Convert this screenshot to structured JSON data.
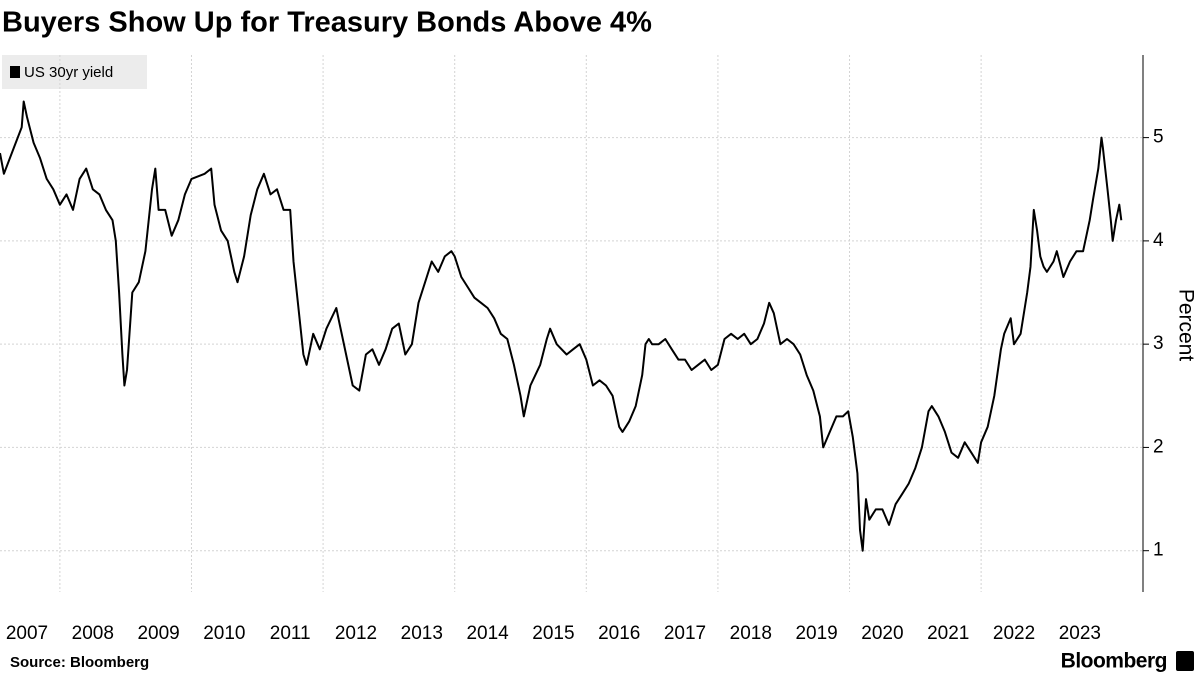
{
  "chart_data": {
    "type": "line",
    "title": "Buyers Show Up for Treasury Bonds Above 4%",
    "source": "Source: Bloomberg",
    "brand": "Bloomberg",
    "ylabel": "Percent",
    "xlim": [
      2007.09,
      2024.46
    ],
    "xticks": [
      2007,
      2008,
      2009,
      2010,
      2011,
      2012,
      2013,
      2014,
      2015,
      2016,
      2017,
      2018,
      2019,
      2020,
      2021,
      2022,
      2023
    ],
    "ylim": [
      0.6,
      5.8
    ],
    "yticks": [
      1,
      2,
      3,
      4,
      5
    ],
    "grid": true,
    "legend": "top-left",
    "x": [
      2007.09,
      2007.15,
      2007.3,
      2007.42,
      2007.45,
      2007.5,
      2007.6,
      2007.7,
      2007.8,
      2007.9,
      2008.0,
      2008.1,
      2008.2,
      2008.3,
      2008.4,
      2008.45,
      2008.5,
      2008.6,
      2008.7,
      2008.8,
      2008.85,
      2008.9,
      2008.95,
      2008.98,
      2009.02,
      2009.1,
      2009.2,
      2009.3,
      2009.4,
      2009.45,
      2009.5,
      2009.6,
      2009.7,
      2009.8,
      2009.9,
      2010.0,
      2010.2,
      2010.3,
      2010.35,
      2010.45,
      2010.55,
      2010.65,
      2010.7,
      2010.8,
      2010.9,
      2011.0,
      2011.1,
      2011.2,
      2011.3,
      2011.4,
      2011.5,
      2011.55,
      2011.6,
      2011.7,
      2011.75,
      2011.85,
      2011.95,
      2012.05,
      2012.2,
      2012.25,
      2012.35,
      2012.45,
      2012.55,
      2012.65,
      2012.75,
      2012.85,
      2012.95,
      2013.05,
      2013.15,
      2013.25,
      2013.35,
      2013.45,
      2013.55,
      2013.65,
      2013.75,
      2013.85,
      2013.95,
      2014.0,
      2014.1,
      2014.2,
      2014.3,
      2014.4,
      2014.5,
      2014.6,
      2014.7,
      2014.8,
      2014.9,
      2015.0,
      2015.05,
      2015.15,
      2015.3,
      2015.4,
      2015.45,
      2015.55,
      2015.7,
      2015.8,
      2015.9,
      2016.0,
      2016.1,
      2016.2,
      2016.3,
      2016.4,
      2016.5,
      2016.55,
      2016.65,
      2016.75,
      2016.85,
      2016.9,
      2016.95,
      2017.0,
      2017.1,
      2017.2,
      2017.3,
      2017.4,
      2017.5,
      2017.6,
      2017.7,
      2017.8,
      2017.9,
      2018.0,
      2018.1,
      2018.2,
      2018.3,
      2018.4,
      2018.5,
      2018.6,
      2018.7,
      2018.78,
      2018.85,
      2018.95,
      2019.05,
      2019.15,
      2019.25,
      2019.35,
      2019.45,
      2019.55,
      2019.6,
      2019.7,
      2019.8,
      2019.9,
      2019.98,
      2020.05,
      2020.12,
      2020.16,
      2020.2,
      2020.25,
      2020.3,
      2020.4,
      2020.5,
      2020.6,
      2020.7,
      2020.8,
      2020.9,
      2021.0,
      2021.1,
      2021.2,
      2021.25,
      2021.35,
      2021.45,
      2021.55,
      2021.65,
      2021.75,
      2021.85,
      2021.95,
      2022.0,
      2022.1,
      2022.2,
      2022.3,
      2022.35,
      2022.45,
      2022.5,
      2022.6,
      2022.7,
      2022.75,
      2022.8,
      2022.85,
      2022.9,
      2022.95,
      2023.0,
      2023.1,
      2023.15,
      2023.25,
      2023.35,
      2023.45,
      2023.55,
      2023.65,
      2023.7,
      2023.78,
      2023.83,
      2023.85,
      2023.92,
      2023.97,
      2024.0,
      2024.05,
      2024.1,
      2024.13
    ],
    "series": [
      {
        "name": "US 30yr yield",
        "color": "#000000",
        "values": [
          4.85,
          4.65,
          4.9,
          5.1,
          5.35,
          5.2,
          4.95,
          4.8,
          4.6,
          4.5,
          4.35,
          4.45,
          4.3,
          4.6,
          4.7,
          4.6,
          4.5,
          4.45,
          4.3,
          4.2,
          4.0,
          3.5,
          2.9,
          2.6,
          2.75,
          3.5,
          3.6,
          3.9,
          4.5,
          4.7,
          4.3,
          4.3,
          4.05,
          4.2,
          4.45,
          4.6,
          4.65,
          4.7,
          4.35,
          4.1,
          4.0,
          3.7,
          3.6,
          3.85,
          4.25,
          4.5,
          4.65,
          4.45,
          4.5,
          4.3,
          4.3,
          3.8,
          3.5,
          2.9,
          2.8,
          3.1,
          2.95,
          3.15,
          3.35,
          3.2,
          2.9,
          2.6,
          2.55,
          2.9,
          2.95,
          2.8,
          2.95,
          3.15,
          3.2,
          2.9,
          3.0,
          3.4,
          3.6,
          3.8,
          3.7,
          3.85,
          3.9,
          3.85,
          3.65,
          3.55,
          3.45,
          3.4,
          3.35,
          3.25,
          3.1,
          3.05,
          2.8,
          2.5,
          2.3,
          2.6,
          2.8,
          3.05,
          3.15,
          3.0,
          2.9,
          2.95,
          3.0,
          2.85,
          2.6,
          2.65,
          2.6,
          2.5,
          2.2,
          2.15,
          2.25,
          2.4,
          2.7,
          3.0,
          3.05,
          3.0,
          3.0,
          3.05,
          2.95,
          2.85,
          2.85,
          2.75,
          2.8,
          2.85,
          2.75,
          2.8,
          3.05,
          3.1,
          3.05,
          3.1,
          3.0,
          3.05,
          3.2,
          3.4,
          3.3,
          3.0,
          3.05,
          3.0,
          2.9,
          2.7,
          2.55,
          2.3,
          2.0,
          2.15,
          2.3,
          2.3,
          2.35,
          2.1,
          1.75,
          1.2,
          1.0,
          1.5,
          1.3,
          1.4,
          1.4,
          1.25,
          1.45,
          1.55,
          1.65,
          1.8,
          2.0,
          2.35,
          2.4,
          2.3,
          2.15,
          1.95,
          1.9,
          2.05,
          1.95,
          1.85,
          2.05,
          2.2,
          2.5,
          2.95,
          3.1,
          3.25,
          3.0,
          3.1,
          3.5,
          3.75,
          4.3,
          4.1,
          3.85,
          3.75,
          3.7,
          3.8,
          3.9,
          3.65,
          3.8,
          3.9,
          3.9,
          4.2,
          4.4,
          4.7,
          5.0,
          4.9,
          4.5,
          4.2,
          4.0,
          4.2,
          4.35,
          4.2
        ]
      }
    ]
  }
}
